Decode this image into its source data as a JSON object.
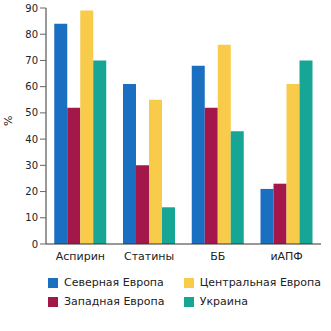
{
  "chart_data": {
    "type": "bar",
    "y_label": "%",
    "categories": [
      "Аспирин",
      "Статины",
      "ББ",
      "иАПФ"
    ],
    "series": [
      {
        "name": "Северная Европа",
        "color": "#1a6fc0",
        "values": [
          84,
          61,
          68,
          21
        ]
      },
      {
        "name": "Западная Европа",
        "color": "#a3174b",
        "values": [
          52,
          30,
          52,
          23
        ]
      },
      {
        "name": "Центральная Европа",
        "color": "#f9cb4a",
        "values": [
          89,
          55,
          76,
          61
        ]
      },
      {
        "name": "Украина",
        "color": "#17a595",
        "values": [
          70,
          14,
          43,
          70
        ]
      }
    ],
    "ylim": [
      0,
      90
    ],
    "yticks": [
      0,
      10,
      20,
      30,
      40,
      50,
      60,
      70,
      80,
      90
    ],
    "grid": false,
    "legend": "bottom"
  }
}
